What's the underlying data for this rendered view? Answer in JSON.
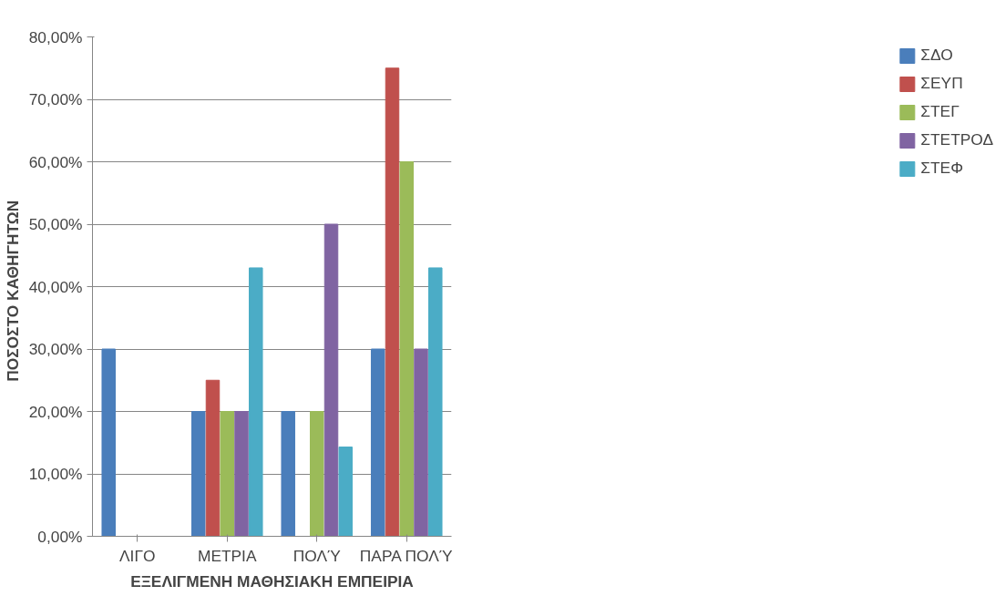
{
  "chart_data": {
    "type": "bar",
    "xlabel": "ΕΞΕΛΙΓΜΕΝΗ ΜΑΘΗΣΙΑΚΗ ΕΜΠΕΙΡΙΑ",
    "ylabel": "ΠΟΣΟΣΤΟ   ΚΑΘΗΓΗΤΩΝ",
    "categories": [
      "ΛΙΓΟ",
      "ΜΕΤΡΙΑ",
      "ΠΟΛΎ",
      "ΠΑΡΑ ΠΟΛΎ"
    ],
    "series": [
      {
        "name": "ΣΔΟ",
        "color": "#4a7ebb",
        "values": [
          30,
          20,
          20,
          30
        ]
      },
      {
        "name": "ΣΕΥΠ",
        "color": "#c0504d",
        "values": [
          null,
          25,
          null,
          75
        ]
      },
      {
        "name": "ΣΤΕΓ",
        "color": "#9bbb59",
        "values": [
          null,
          20,
          20,
          60
        ]
      },
      {
        "name": "ΣΤΕΤΡΟΔ",
        "color": "#8064a2",
        "values": [
          null,
          20,
          50,
          30
        ]
      },
      {
        "name": "ΣΤΕΦ",
        "color": "#4bacc6",
        "values": [
          null,
          43,
          14.3,
          43
        ]
      }
    ],
    "ylim": [
      0,
      80
    ],
    "yticks": [
      {
        "value": 0,
        "label": "0,00%"
      },
      {
        "value": 10,
        "label": "10,00%"
      },
      {
        "value": 20,
        "label": "20,00%"
      },
      {
        "value": 30,
        "label": "30,00%"
      },
      {
        "value": 40,
        "label": "40,00%"
      },
      {
        "value": 50,
        "label": "50,00%"
      },
      {
        "value": 60,
        "label": "60,00%"
      },
      {
        "value": 70,
        "label": "70,00%"
      },
      {
        "value": 80,
        "label": "80,00%"
      }
    ],
    "grid": "y",
    "legend": "right"
  }
}
